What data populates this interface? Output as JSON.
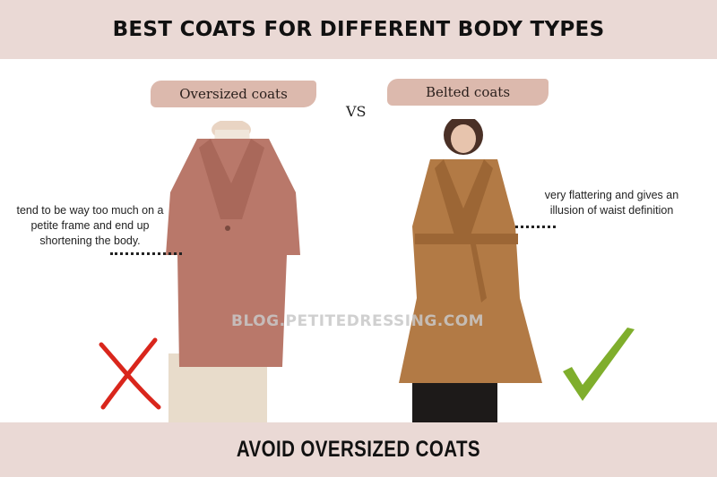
{
  "header": {
    "title": "BEST COATS FOR DIFFERENT BODY TYPES"
  },
  "left": {
    "label": "Oversized coats",
    "note": [
      "tend to be way too much on a",
      "petite frame and end up",
      "shortening the body."
    ],
    "verdict_icon": "cross-icon",
    "verdict_color": "#d9261c",
    "coat_color": "#b9786a"
  },
  "vs": "VS",
  "right": {
    "label": "Belted coats",
    "note": [
      "very flattering and gives an",
      "illusion of waist definition"
    ],
    "verdict_icon": "check-icon",
    "verdict_color": "#7fae2c",
    "coat_color": "#b27a45"
  },
  "watermark": "BLOG.PETITEDRESSING.COM",
  "footer": {
    "text": "AVOID OVERSIZED COATS"
  }
}
